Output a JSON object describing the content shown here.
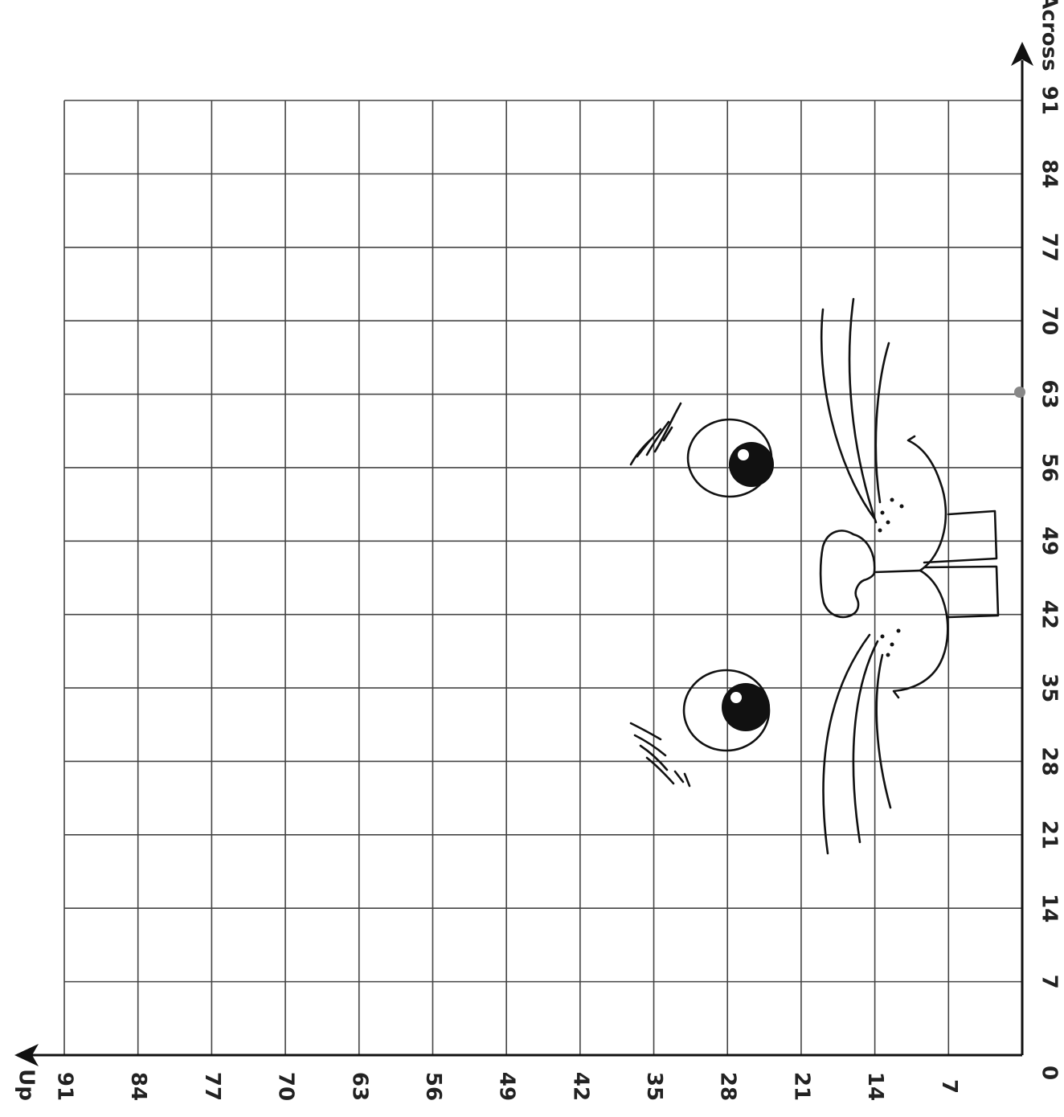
{
  "worksheet": {
    "across_axis": {
      "label": "Across",
      "ticks": [
        7,
        14,
        21,
        28,
        35,
        42,
        49,
        56,
        63,
        70,
        77,
        84,
        91
      ]
    },
    "up_axis": {
      "label": "Up",
      "ticks": [
        7,
        14,
        21,
        28,
        35,
        42,
        49,
        56,
        63,
        70,
        77,
        84,
        91
      ]
    },
    "origin": 0
  }
}
